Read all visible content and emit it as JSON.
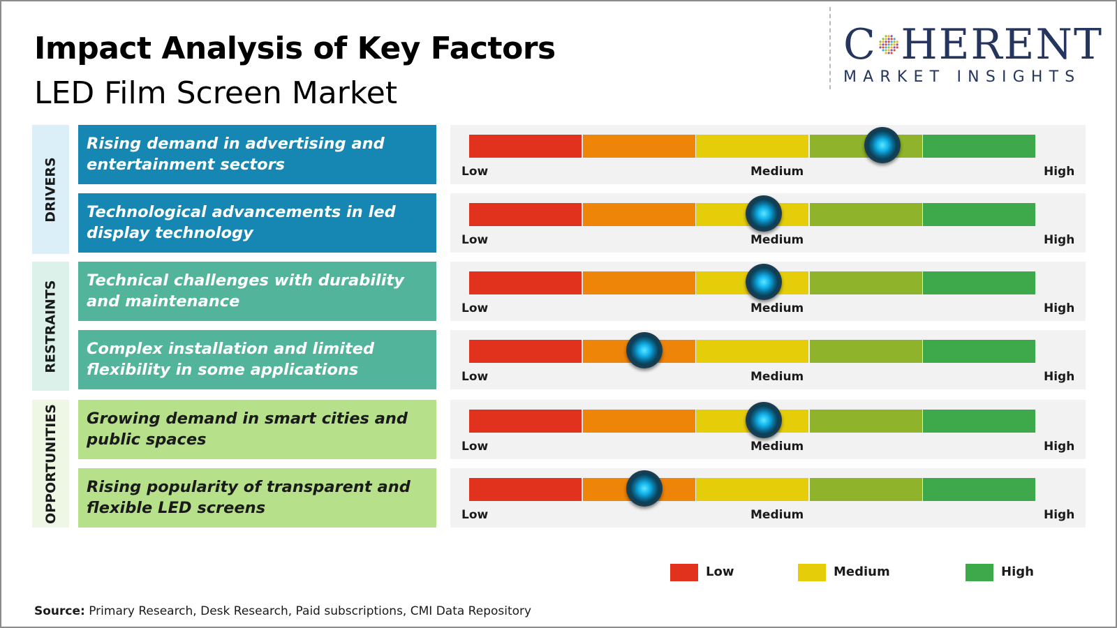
{
  "header": {
    "title": "Impact Analysis of Key Factors",
    "subtitle": "LED Film Screen Market"
  },
  "logo": {
    "main_left": "C",
    "main_right": "HERENT",
    "sub": "MARKET INSIGHTS"
  },
  "categories": [
    {
      "label": "DRIVERS",
      "color": "#dbeff9"
    },
    {
      "label": "RESTRAINTS",
      "color": "#dbf1ea"
    },
    {
      "label": "OPPORTUNITIES",
      "color": "#eef7e4"
    }
  ],
  "scale": {
    "low_label": "Low",
    "medium_label": "Medium",
    "high_label": "High",
    "segment_colors": [
      "#e0321d",
      "#ee8408",
      "#e5cd0a",
      "#8fb32a",
      "#3da94a"
    ]
  },
  "chart_data": {
    "type": "gauge",
    "scale_levels": [
      "Low",
      "Medium",
      "High"
    ],
    "value_range": [
      0,
      1
    ],
    "factors": [
      {
        "category": "DRIVERS",
        "label": "Rising demand in advertising and entertainment sectors",
        "impact": 0.73,
        "color": "#1687b3"
      },
      {
        "category": "DRIVERS",
        "label": "Technological advancements in led display technology",
        "impact": 0.52,
        "color": "#1687b3"
      },
      {
        "category": "RESTRAINTS",
        "label": "Technical challenges with durability and maintenance",
        "impact": 0.52,
        "color": "#52b49a"
      },
      {
        "category": "RESTRAINTS",
        "label": "Complex installation and limited flexibility in some applications",
        "impact": 0.31,
        "color": "#52b49a"
      },
      {
        "category": "OPPORTUNITIES",
        "label": "Growing demand in smart cities and public spaces",
        "impact": 0.52,
        "color": "#b6e08a"
      },
      {
        "category": "OPPORTUNITIES",
        "label": "Rising popularity of transparent and flexible LED screens",
        "impact": 0.31,
        "color": "#b6e08a"
      }
    ],
    "legend": [
      {
        "label": "Low",
        "color": "#e0321d"
      },
      {
        "label": "Medium",
        "color": "#e5cd0a"
      },
      {
        "label": "High",
        "color": "#3da94a"
      }
    ]
  },
  "source": {
    "prefix": "Source:",
    "text": " Primary Research, Desk Research, Paid subscriptions, CMI Data Repository"
  }
}
